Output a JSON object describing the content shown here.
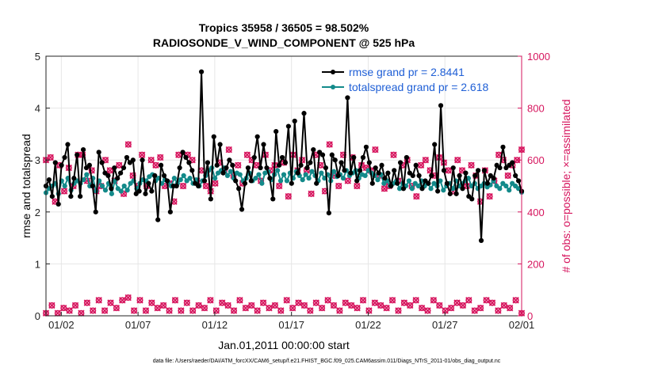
{
  "chart_data": {
    "type": "line",
    "title_line1": "Tropics 35958 / 36505 = 98.502%",
    "title_line2": "RADIOSONDE_V_WIND_COMPONENT @ 525 hPa",
    "xlabel": "Jan.01,2011 00:00:00 start",
    "ylabel_left": "rmse and totalspread",
    "ylabel_right": "# of obs: o=possible; ×=assimilated",
    "footnote": "data file: /Users/raeder/DAI/ATM_forcXX/CAM6_setup/f.e21.FHIST_BGC.f09_025.CAM6assim.011/Diags_NTrS_2011-01/obs_diag_output.nc",
    "x_range": [
      0,
      31
    ],
    "x_ticks": [
      {
        "x": 1,
        "label": "01/02"
      },
      {
        "x": 6,
        "label": "01/07"
      },
      {
        "x": 11,
        "label": "01/12"
      },
      {
        "x": 16,
        "label": "01/17"
      },
      {
        "x": 21,
        "label": "01/22"
      },
      {
        "x": 26,
        "label": "01/27"
      },
      {
        "x": 31,
        "label": "02/01"
      }
    ],
    "ylim_left": [
      0,
      5
    ],
    "yticks_left": [
      "0",
      "1",
      "2",
      "3",
      "4",
      "5"
    ],
    "ylim_right": [
      0,
      1000
    ],
    "yticks_right": [
      "0",
      "200",
      "400",
      "600",
      "800",
      "1000"
    ],
    "grid": true,
    "legend_position": "top-right",
    "series": [
      {
        "name": "rmse grand pr = 2.8441",
        "color": "#000000",
        "axis": "left",
        "values": [
          2.5,
          2.62,
          2.3,
          2.95,
          2.15,
          2.9,
          3.05,
          3.3,
          2.3,
          2.65,
          3.1,
          2.3,
          3.2,
          2.85,
          2.9,
          2.5,
          2.0,
          3.15,
          2.95,
          2.75,
          2.7,
          2.45,
          2.85,
          2.65,
          2.75,
          2.85,
          3.05,
          2.95,
          3.0,
          2.35,
          2.4,
          3.0,
          2.35,
          2.55,
          2.4,
          2.7,
          1.85,
          2.9,
          2.7,
          2.6,
          2.0,
          2.5,
          2.5,
          2.85,
          3.15,
          3.05,
          2.95,
          2.8,
          2.55,
          2.5,
          4.7,
          2.6,
          2.95,
          2.25,
          3.45,
          2.9,
          3.3,
          2.75,
          2.85,
          3.0,
          2.9,
          2.6,
          2.45,
          2.05,
          2.55,
          2.85,
          2.6,
          3.05,
          3.45,
          2.85,
          3.3,
          2.85,
          2.65,
          2.25,
          3.55,
          2.9,
          3.05,
          2.95,
          3.65,
          2.55,
          3.75,
          2.75,
          2.9,
          3.9,
          2.85,
          2.95,
          3.2,
          2.55,
          3.15,
          3.1,
          2.85,
          1.98,
          3.1,
          3.0,
          2.7,
          2.95,
          2.8,
          4.2,
          2.75,
          3.05,
          2.6,
          2.8,
          3.05,
          3.25,
          2.95,
          2.55,
          2.85,
          2.75,
          2.9,
          2.65,
          2.75,
          2.5,
          2.8,
          2.55,
          2.95,
          2.45,
          3.05,
          2.75,
          2.7,
          2.9,
          2.7,
          2.45,
          2.6,
          2.55,
          2.7,
          3.3,
          2.4,
          4.05,
          2.8,
          2.55,
          2.35,
          2.85,
          2.35,
          2.7,
          2.45,
          2.75,
          2.3,
          2.25,
          2.7,
          2.8,
          1.45,
          2.8,
          2.55,
          2.7,
          2.65,
          2.9,
          2.85,
          3.25,
          2.85,
          2.9,
          2.95,
          2.7,
          2.6,
          2.4
        ]
      },
      {
        "name": "totalspread grand pr = 2.618",
        "color": "#138a8a",
        "axis": "left",
        "values": [
          2.37,
          2.45,
          2.5,
          2.55,
          2.35,
          2.6,
          2.5,
          2.65,
          2.42,
          2.55,
          2.6,
          2.55,
          2.62,
          2.72,
          2.5,
          2.65,
          2.4,
          2.6,
          2.5,
          2.42,
          2.55,
          2.35,
          2.6,
          2.45,
          2.4,
          2.5,
          2.42,
          2.55,
          2.6,
          2.45,
          2.55,
          2.62,
          2.6,
          2.68,
          2.72,
          2.6,
          2.65,
          2.55,
          2.62,
          2.58,
          2.5,
          2.65,
          2.55,
          2.62,
          2.7,
          2.6,
          2.65,
          2.55,
          2.62,
          2.5,
          2.6,
          2.7,
          2.8,
          2.85,
          2.65,
          2.75,
          2.8,
          2.85,
          2.7,
          2.78,
          2.65,
          2.75,
          2.72,
          2.6,
          2.65,
          2.75,
          2.6,
          2.65,
          2.72,
          2.55,
          2.75,
          2.78,
          2.62,
          2.72,
          2.8,
          2.6,
          2.72,
          2.6,
          2.75,
          2.65,
          2.78,
          2.7,
          2.62,
          2.72,
          2.65,
          2.78,
          2.7,
          2.6,
          2.75,
          2.65,
          2.72,
          2.6,
          2.78,
          2.68,
          2.72,
          2.65,
          2.8,
          2.7,
          2.75,
          2.8,
          2.65,
          2.72,
          2.7,
          2.8,
          2.75,
          2.7,
          2.62,
          2.72,
          2.55,
          2.6,
          2.5,
          2.55,
          2.6,
          2.45,
          2.55,
          2.5,
          2.6,
          2.45,
          2.55,
          2.5,
          2.6,
          2.5,
          2.55,
          2.45,
          2.55,
          2.5,
          2.6,
          2.42,
          2.5,
          2.55,
          2.45,
          2.6,
          2.5,
          2.55,
          2.6,
          2.65,
          2.5,
          2.55,
          2.45,
          2.5,
          2.55,
          2.48,
          2.52,
          2.6,
          2.5,
          2.45,
          2.55,
          2.5,
          2.42,
          2.55,
          2.5,
          2.45,
          2.38
        ]
      }
    ],
    "obs_possible": {
      "name": "possible",
      "marker": "o",
      "color": "#d6145d",
      "axis": "right",
      "upper_values": [
        600,
        610,
        440,
        580,
        480,
        570,
        500,
        620,
        620,
        520,
        560,
        480,
        500,
        600,
        560,
        520,
        580,
        470,
        660,
        540,
        500,
        620,
        500,
        600,
        580,
        610,
        500,
        510,
        440,
        620,
        500,
        620,
        600,
        520,
        560,
        500,
        480,
        510,
        590,
        560,
        640,
        540,
        580,
        510,
        620,
        600,
        580,
        520,
        620,
        560,
        580,
        500,
        590,
        460,
        620,
        560,
        600,
        560,
        470,
        620,
        580,
        480,
        660,
        540,
        500,
        620,
        520,
        610,
        500,
        580,
        570,
        560,
        640,
        540,
        490,
        500,
        620,
        520,
        580,
        600,
        500,
        460,
        580,
        600,
        560,
        540,
        610,
        590,
        560,
        480,
        600,
        560,
        500,
        580,
        540,
        440,
        560,
        460,
        520,
        620,
        600,
        540,
        580,
        600,
        640
      ],
      "lower_values": [
        10,
        40,
        10,
        30,
        20,
        40,
        10,
        50,
        20,
        60,
        20,
        50,
        30,
        60,
        70,
        20,
        60,
        20,
        50,
        30,
        40,
        20,
        60,
        20,
        50,
        20,
        40,
        30,
        60,
        20,
        50,
        40,
        20,
        60,
        30,
        40,
        20,
        50,
        30,
        40,
        20,
        60,
        30,
        50,
        40,
        20,
        50,
        30,
        60,
        40,
        20,
        50,
        40,
        30,
        60,
        20,
        50,
        40,
        30,
        60,
        20,
        50,
        40,
        60,
        30,
        20,
        60,
        40,
        20,
        30,
        50,
        40,
        60,
        20,
        30,
        60,
        50,
        20,
        40,
        30,
        60,
        10
      ]
    }
  }
}
